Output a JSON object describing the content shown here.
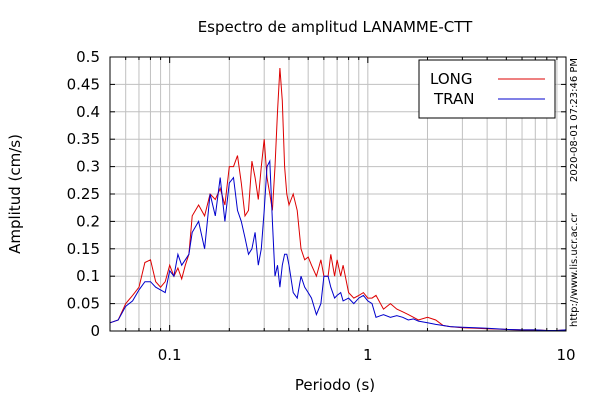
{
  "chart_data": {
    "type": "line",
    "title": "Espectro de amplitud LANAMME-CTT",
    "xlabel": "Periodo (s)",
    "ylabel": "Amplitud (cm/s)",
    "xscale": "log",
    "xlim": [
      0.05,
      10
    ],
    "ylim": [
      0,
      0.5
    ],
    "xtick_labels": [
      {
        "value": 0.1,
        "label": "0.1"
      },
      {
        "value": 1,
        "label": "1"
      },
      {
        "value": 10,
        "label": "10"
      }
    ],
    "ytick_labels": [
      "0",
      "0.05",
      "0.1",
      "0.15",
      "0.2",
      "0.25",
      "0.3",
      "0.35",
      "0.4",
      "0.45",
      "0.5"
    ],
    "yticks": [
      0,
      0.05,
      0.1,
      0.15,
      0.2,
      0.25,
      0.3,
      0.35,
      0.4,
      0.45,
      0.5
    ],
    "grid": true,
    "legend_position": "top-right",
    "timestamp": "2020-08-01 07:23:46 PM",
    "source_url": "http://www.lis.ucr.ac.cr",
    "series": [
      {
        "name": "LONG",
        "color": "#dd0000",
        "x": [
          0.05,
          0.055,
          0.06,
          0.065,
          0.07,
          0.075,
          0.08,
          0.085,
          0.09,
          0.095,
          0.1,
          0.105,
          0.11,
          0.115,
          0.12,
          0.125,
          0.13,
          0.14,
          0.15,
          0.16,
          0.17,
          0.18,
          0.19,
          0.2,
          0.21,
          0.22,
          0.23,
          0.24,
          0.25,
          0.26,
          0.27,
          0.28,
          0.29,
          0.3,
          0.31,
          0.32,
          0.33,
          0.34,
          0.35,
          0.36,
          0.37,
          0.38,
          0.39,
          0.4,
          0.42,
          0.44,
          0.46,
          0.48,
          0.5,
          0.52,
          0.55,
          0.58,
          0.6,
          0.63,
          0.65,
          0.68,
          0.7,
          0.73,
          0.75,
          0.8,
          0.85,
          0.9,
          0.95,
          1.0,
          1.05,
          1.1,
          1.2,
          1.3,
          1.4,
          1.5,
          1.6,
          1.7,
          1.8,
          2.0,
          2.2,
          2.4,
          2.6,
          3.0,
          3.5,
          4.0,
          5.0,
          6.0,
          7.0,
          8.0,
          9.0,
          10.0
        ],
        "values": [
          0.015,
          0.02,
          0.05,
          0.065,
          0.08,
          0.125,
          0.13,
          0.09,
          0.08,
          0.09,
          0.12,
          0.1,
          0.115,
          0.095,
          0.12,
          0.14,
          0.21,
          0.23,
          0.21,
          0.25,
          0.24,
          0.26,
          0.23,
          0.3,
          0.3,
          0.32,
          0.27,
          0.21,
          0.22,
          0.31,
          0.28,
          0.24,
          0.3,
          0.35,
          0.28,
          0.25,
          0.22,
          0.3,
          0.4,
          0.48,
          0.42,
          0.3,
          0.25,
          0.23,
          0.25,
          0.22,
          0.15,
          0.13,
          0.135,
          0.12,
          0.1,
          0.13,
          0.1,
          0.1,
          0.14,
          0.1,
          0.13,
          0.1,
          0.12,
          0.07,
          0.06,
          0.065,
          0.07,
          0.06,
          0.06,
          0.065,
          0.04,
          0.05,
          0.04,
          0.035,
          0.03,
          0.025,
          0.02,
          0.025,
          0.02,
          0.01,
          0.008,
          0.006,
          0.005,
          0.004,
          0.003,
          0.002,
          0.002,
          0.001,
          0.001,
          0.002
        ]
      },
      {
        "name": "TRAN",
        "color": "#0000cc",
        "x": [
          0.05,
          0.055,
          0.06,
          0.065,
          0.07,
          0.075,
          0.08,
          0.085,
          0.09,
          0.095,
          0.1,
          0.105,
          0.11,
          0.115,
          0.12,
          0.125,
          0.13,
          0.14,
          0.15,
          0.16,
          0.17,
          0.18,
          0.19,
          0.2,
          0.21,
          0.22,
          0.23,
          0.24,
          0.25,
          0.26,
          0.27,
          0.28,
          0.29,
          0.3,
          0.31,
          0.32,
          0.33,
          0.34,
          0.35,
          0.36,
          0.37,
          0.38,
          0.39,
          0.4,
          0.42,
          0.44,
          0.46,
          0.48,
          0.5,
          0.52,
          0.55,
          0.58,
          0.6,
          0.63,
          0.65,
          0.68,
          0.7,
          0.73,
          0.75,
          0.8,
          0.85,
          0.9,
          0.95,
          1.0,
          1.05,
          1.1,
          1.2,
          1.3,
          1.4,
          1.5,
          1.6,
          1.7,
          1.8,
          2.0,
          2.2,
          2.4,
          2.6,
          3.0,
          3.5,
          4.0,
          5.0,
          6.0,
          7.0,
          8.0,
          9.0,
          10.0
        ],
        "values": [
          0.015,
          0.02,
          0.045,
          0.055,
          0.075,
          0.09,
          0.09,
          0.08,
          0.075,
          0.07,
          0.11,
          0.1,
          0.14,
          0.12,
          0.13,
          0.14,
          0.18,
          0.2,
          0.15,
          0.25,
          0.21,
          0.28,
          0.2,
          0.27,
          0.28,
          0.22,
          0.2,
          0.17,
          0.14,
          0.15,
          0.18,
          0.12,
          0.15,
          0.22,
          0.3,
          0.31,
          0.2,
          0.1,
          0.12,
          0.08,
          0.12,
          0.14,
          0.14,
          0.12,
          0.07,
          0.06,
          0.1,
          0.08,
          0.07,
          0.06,
          0.03,
          0.05,
          0.1,
          0.1,
          0.08,
          0.06,
          0.065,
          0.07,
          0.055,
          0.06,
          0.05,
          0.06,
          0.065,
          0.055,
          0.05,
          0.025,
          0.03,
          0.025,
          0.028,
          0.025,
          0.02,
          0.022,
          0.018,
          0.015,
          0.012,
          0.01,
          0.008,
          0.007,
          0.006,
          0.005,
          0.003,
          0.002,
          0.002,
          0.001,
          0.001,
          0.002
        ]
      }
    ]
  }
}
